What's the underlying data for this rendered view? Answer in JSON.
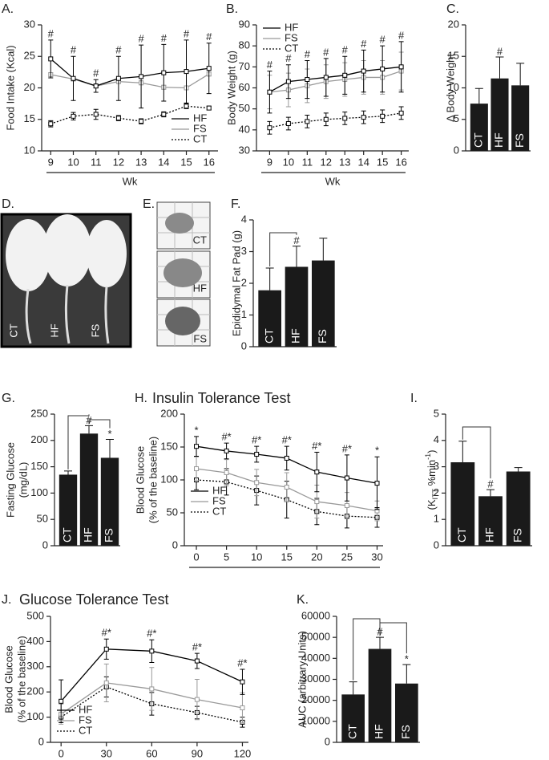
{
  "photos": {
    "D": {
      "panel": "D.",
      "labels": [
        "CT",
        "HF",
        "FS"
      ]
    },
    "E": {
      "panel": "E.",
      "labels": [
        "CT",
        "HF",
        "FS"
      ]
    }
  },
  "chart_data": [
    {
      "type": "line",
      "panel": "A.",
      "ylabel": "Food Intake (Kcal)",
      "xlabel": "Wk",
      "x": [
        9,
        10,
        11,
        12,
        13,
        14,
        15,
        16
      ],
      "xlim": [
        8.6,
        16.4
      ],
      "xticks": [
        9,
        10,
        11,
        12,
        13,
        14,
        15,
        16
      ],
      "ylim": [
        10,
        30
      ],
      "yticks": [
        10,
        15,
        20,
        25,
        30
      ],
      "legend": "lower right",
      "marker": "square",
      "series": [
        {
          "name": "HF",
          "color": "#000000",
          "style": "solid",
          "values": [
            24.6,
            21.5,
            20.3,
            21.5,
            21.8,
            22.4,
            22.6,
            23.1
          ],
          "errors": [
            3,
            3.5,
            1,
            3.5,
            5,
            4.5,
            5,
            4
          ]
        },
        {
          "name": "FS",
          "color": "#999999",
          "style": "solid",
          "values": [
            22.1,
            21.4,
            20.3,
            21.0,
            20.8,
            20.1,
            20.0,
            22.2
          ],
          "errors": [
            0.3,
            0.3,
            0.3,
            0.3,
            0.3,
            0.3,
            0.3,
            0.3
          ]
        },
        {
          "name": "CT",
          "color": "#000000",
          "style": "dotted",
          "values": [
            14.3,
            15.5,
            15.8,
            15.2,
            14.7,
            15.8,
            17.1,
            16.8
          ],
          "errors": [
            0.5,
            0.6,
            0.8,
            0.4,
            0.4,
            0.4,
            0.4,
            0.3
          ]
        }
      ],
      "annotations": [
        "#",
        "#",
        "#",
        "#",
        "#",
        "#",
        "#",
        "#"
      ]
    },
    {
      "type": "line",
      "panel": "B.",
      "ylabel": "Body Weight (g)",
      "xlabel": "Wk",
      "x": [
        9,
        10,
        11,
        12,
        13,
        14,
        15,
        16
      ],
      "xlim": [
        8.3,
        16.4
      ],
      "xticks": [
        9,
        10,
        11,
        12,
        13,
        14,
        15,
        16
      ],
      "ylim": [
        30,
        90
      ],
      "yticks": [
        30,
        40,
        50,
        60,
        70,
        80,
        90
      ],
      "legend": "upper left",
      "marker": "square",
      "series": [
        {
          "name": "HF",
          "color": "#000000",
          "style": "solid",
          "values": [
            58,
            63,
            64,
            65,
            66,
            68,
            69,
            70
          ],
          "errors": [
            10,
            8,
            9,
            9,
            9,
            10,
            11,
            12
          ]
        },
        {
          "name": "FS",
          "color": "#999999",
          "style": "solid",
          "values": [
            58,
            59,
            61,
            63,
            64,
            65,
            65,
            68
          ],
          "errors": [
            8,
            8,
            8,
            8,
            8,
            8,
            8,
            9
          ]
        },
        {
          "name": "CT",
          "color": "#000000",
          "style": "dotted",
          "values": [
            41,
            43,
            44,
            45,
            45.5,
            46,
            46.5,
            48
          ],
          "errors": [
            3,
            3,
            3,
            3,
            3,
            3,
            3,
            3
          ]
        }
      ],
      "annotations": [
        "#",
        "#",
        "#",
        "#",
        "#",
        "#",
        "#",
        "#"
      ]
    },
    {
      "type": "bar",
      "panel": "C.",
      "ylabel": "Δ Body Weight",
      "categories": [
        "CT",
        "HF",
        "FS"
      ],
      "values": [
        7.5,
        11.5,
        10.4
      ],
      "errors": [
        2.4,
        3.4,
        3.5
      ],
      "color": "#1a1a1a",
      "ylim": [
        0,
        20
      ],
      "yticks": [
        0,
        5,
        10,
        15,
        20
      ],
      "annotations": [
        null,
        "#",
        null
      ]
    },
    {
      "type": "bar",
      "panel": "F.",
      "ylabel": "Epididymal Fat Pad (g)",
      "categories": [
        "CT",
        "HF",
        "FS"
      ],
      "values": [
        1.78,
        2.52,
        2.72
      ],
      "errors": [
        0.7,
        0.65,
        0.7
      ],
      "color": "#1a1a1a",
      "ylim": [
        0,
        4
      ],
      "yticks": [
        0,
        1,
        2,
        3,
        4
      ],
      "annotations": [
        null,
        "#",
        null
      ]
    },
    {
      "type": "bar",
      "panel": "G.",
      "ylabel": [
        "Fasting Glucose",
        "(mg/dL)"
      ],
      "categories": [
        "CT",
        "HF",
        "FS"
      ],
      "values": [
        135,
        213,
        167
      ],
      "errors": [
        7,
        15,
        35
      ],
      "color": "#1a1a1a",
      "ylim": [
        0,
        250
      ],
      "yticks": [
        0,
        50,
        100,
        150,
        200,
        250
      ],
      "annotations": [
        null,
        "#",
        "*"
      ]
    },
    {
      "type": "line",
      "panel": "H.",
      "title": "Insulin Tolerance Test",
      "ylabel": [
        "Blood Glucose",
        "(% of the baseline)"
      ],
      "x": [
        0,
        5,
        10,
        15,
        20,
        25,
        30
      ],
      "xlim": [
        -2,
        31
      ],
      "xticks": [
        0,
        5,
        10,
        15,
        20,
        25,
        30
      ],
      "ylim": [
        0,
        200
      ],
      "yticks": [
        0,
        50,
        100,
        150,
        200
      ],
      "legend": "lower left",
      "marker": "square",
      "series": [
        {
          "name": "HF",
          "color": "#000000",
          "style": "solid",
          "values": [
            151,
            144,
            139,
            133,
            112,
            103,
            95
          ],
          "errors": [
            15,
            12,
            12,
            18,
            30,
            35,
            40
          ]
        },
        {
          "name": "FS",
          "color": "#999999",
          "style": "solid",
          "values": [
            117,
            111,
            96,
            89,
            67,
            61,
            53
          ],
          "errors": [
            18,
            20,
            20,
            22,
            25,
            20,
            15
          ]
        },
        {
          "name": "CT",
          "color": "#000000",
          "style": "dotted",
          "values": [
            100,
            97,
            84,
            70,
            52,
            45,
            43
          ],
          "errors": [
            15,
            20,
            22,
            28,
            20,
            18,
            15
          ]
        }
      ],
      "annotations": [
        "*",
        "#*",
        "#*",
        "#*",
        "#*",
        "#*",
        "*"
      ]
    },
    {
      "type": "bar",
      "panel": "I.",
      "ylabel_parts": [
        "(K",
        "ITT",
        " %min",
        "-1",
        ")"
      ],
      "categories": [
        "CT",
        "HF",
        "FS"
      ],
      "values": [
        3.17,
        1.88,
        2.82
      ],
      "errors": [
        0.8,
        0.25,
        0.15
      ],
      "color": "#1a1a1a",
      "ylim": [
        0,
        5
      ],
      "yticks": [
        0,
        1,
        2,
        3,
        4,
        5
      ],
      "annotations": [
        null,
        "#",
        null
      ]
    },
    {
      "type": "line",
      "panel": "J.",
      "title": "Glucose Tolerance Test",
      "ylabel": [
        "Blood Glucose",
        "(% of the baseline)"
      ],
      "x": [
        0,
        30,
        60,
        90,
        120
      ],
      "xlim": [
        -7,
        124
      ],
      "xticks": [
        0,
        30,
        60,
        90,
        120
      ],
      "ylim": [
        0,
        500
      ],
      "yticks": [
        0,
        100,
        200,
        300,
        400,
        500
      ],
      "legend": "lower left",
      "marker": "square",
      "series": [
        {
          "name": "HF",
          "color": "#000000",
          "style": "solid",
          "values": [
            163,
            370,
            362,
            323,
            240
          ],
          "errors": [
            85,
            40,
            45,
            30,
            50
          ]
        },
        {
          "name": "FS",
          "color": "#999999",
          "style": "solid",
          "values": [
            112,
            236,
            212,
            170,
            137
          ],
          "errors": [
            40,
            75,
            85,
            80,
            60
          ]
        },
        {
          "name": "CT",
          "color": "#000000",
          "style": "dotted",
          "values": [
            100,
            220,
            153,
            118,
            80
          ],
          "errors": [
            15,
            40,
            45,
            25,
            20
          ]
        }
      ],
      "annotations": [
        null,
        "#*",
        "#*",
        "#*",
        "#*"
      ]
    },
    {
      "type": "bar",
      "panel": "K.",
      "ylabel": "AUC (arbitrary Units)",
      "categories": [
        "CT",
        "HF",
        "FS"
      ],
      "values": [
        22800,
        44500,
        28000
      ],
      "errors": [
        6000,
        5500,
        9000
      ],
      "color": "#1a1a1a",
      "ylim": [
        0,
        60000
      ],
      "yticks": [
        0,
        10000,
        20000,
        30000,
        40000,
        50000,
        60000
      ],
      "annotations": [
        null,
        "#",
        "*"
      ]
    }
  ]
}
